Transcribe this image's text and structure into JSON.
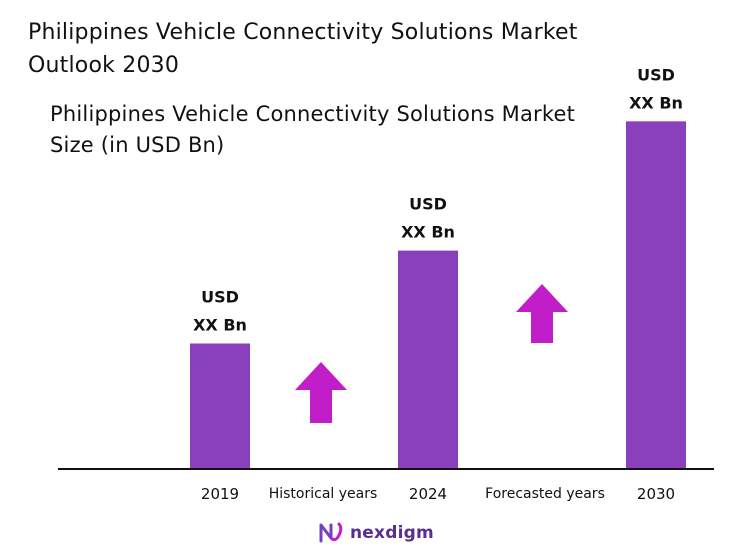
{
  "header": {
    "title": "Philippines Vehicle Connectivity Solutions Market Outlook 2030"
  },
  "chart_data": {
    "type": "bar",
    "title": "Philippines Vehicle Connectivity Solutions Market  Size (in USD Bn)",
    "categories": [
      "2019",
      "2024",
      "2030"
    ],
    "series": [
      {
        "values": [
          1.0,
          1.74,
          2.77
        ]
      }
    ],
    "value_labels": [
      [
        "USD",
        "XX Bn"
      ],
      [
        "USD",
        "XX Bn"
      ],
      [
        "USD",
        "XX Bn"
      ]
    ],
    "period_labels": [
      "Historical years",
      "Forecasted years"
    ],
    "bar_color": "#8a3fbd",
    "arrow_color": "#c11ec9",
    "legend": "none",
    "grid": false,
    "ylim": [
      0,
      2.9
    ]
  },
  "logo": {
    "name": "nexdigm-icon",
    "text": "nexdigm",
    "color": "#5b2d8e"
  }
}
